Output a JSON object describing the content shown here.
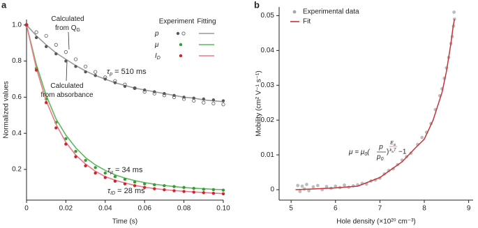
{
  "chart_data": [
    {
      "type": "decay",
      "panel_label": "a",
      "x_label": "Time (s)",
      "y_label": "Normalized values",
      "xlim": [
        0,
        0.1
      ],
      "ylim": [
        0.03,
        1.03
      ],
      "xticks": [
        0,
        0.02,
        0.04,
        0.06,
        0.08,
        {
          "value": 0.1,
          "label": "0.10"
        }
      ],
      "yticks": [
        0.2,
        0.4,
        0.6,
        0.8,
        {
          "value": 1,
          "label": "1.0"
        }
      ],
      "legend_headers": [
        "Experiment",
        "Fitting"
      ],
      "x": [
        0,
        0.005,
        0.01,
        0.015,
        0.02,
        0.025,
        0.03,
        0.035,
        0.04,
        0.045,
        0.05,
        0.055,
        0.06,
        0.065,
        0.07,
        0.075,
        0.08,
        0.085,
        0.09,
        0.095,
        0.1
      ],
      "series": [
        {
          "name": "p",
          "color": "#58595b",
          "fit_color": "#9a9a9a",
          "values": [
            1.0,
            0.93,
            0.88,
            0.84,
            0.8,
            0.77,
            0.74,
            0.72,
            0.7,
            0.68,
            0.66,
            0.65,
            0.64,
            0.63,
            0.62,
            0.61,
            0.6,
            0.595,
            0.59,
            0.585,
            0.58
          ],
          "values_open": [
            1.0,
            0.96,
            0.94,
            0.89,
            0.85,
            0.81,
            0.77,
            0.74,
            0.71,
            0.69,
            0.67,
            0.65,
            0.63,
            0.62,
            0.61,
            0.6,
            0.59,
            0.58,
            0.57,
            0.565,
            0.56
          ],
          "fit_values": [
            1.0,
            0.94,
            0.89,
            0.845,
            0.81,
            0.775,
            0.745,
            0.72,
            0.7,
            0.68,
            0.665,
            0.65,
            0.64,
            0.63,
            0.62,
            0.61,
            0.6,
            0.595,
            0.585,
            0.58,
            0.575
          ]
        },
        {
          "name": "μ",
          "color": "#3a9a3a",
          "fit_color": "#5cb85c",
          "values": [
            1.0,
            0.76,
            0.59,
            0.46,
            0.37,
            0.3,
            0.25,
            0.21,
            0.18,
            0.16,
            0.145,
            0.13,
            0.12,
            0.115,
            0.11,
            0.105,
            0.1,
            0.095,
            0.09,
            0.088,
            0.085
          ],
          "fit_values": [
            1.0,
            0.78,
            0.61,
            0.48,
            0.39,
            0.32,
            0.265,
            0.225,
            0.195,
            0.17,
            0.152,
            0.138,
            0.127,
            0.118,
            0.111,
            0.105,
            0.1,
            0.096,
            0.093,
            0.09,
            0.088
          ]
        },
        {
          "name": "I",
          "name_sub": "D",
          "color": "#d0232b",
          "fit_color": "#ec7a86",
          "values": [
            1.0,
            0.75,
            0.57,
            0.43,
            0.34,
            0.27,
            0.22,
            0.18,
            0.155,
            0.135,
            0.12,
            0.11,
            0.1,
            0.093,
            0.087,
            0.082,
            0.078,
            0.074,
            0.071,
            0.068,
            0.065
          ],
          "fit_values": [
            1.0,
            0.76,
            0.58,
            0.45,
            0.35,
            0.28,
            0.23,
            0.19,
            0.16,
            0.14,
            0.125,
            0.112,
            0.102,
            0.094,
            0.088,
            0.083,
            0.079,
            0.075,
            0.072,
            0.069,
            0.066
          ]
        }
      ],
      "annotations": [
        {
          "lines": [
            {
              "text": "Calculated"
            },
            {
              "text": "from Q",
              "sub": "G"
            }
          ],
          "color": "#333333"
        },
        {
          "lines": [
            {
              "text": "Calculated"
            },
            {
              "text": "from absorbance"
            }
          ],
          "color": "#333333"
        },
        {
          "text": "τ",
          "sub": "p",
          "rest": " = 510 ms",
          "color": "#8a8a8a"
        },
        {
          "text": "τ",
          "sub": "μ",
          "rest": " = 34 ms",
          "color": "#3a9a3a"
        },
        {
          "text": "τ",
          "sub": "ID",
          "rest": " = 28 ms",
          "color": "#d0232b"
        }
      ]
    },
    {
      "type": "scatter",
      "panel_label": "b",
      "x_label": "Hole density (×10²⁰ cm⁻³)",
      "y_label": "Mobility (cm² V⁻¹ s⁻¹)",
      "xlim": [
        4.73,
        9.1
      ],
      "ylim": [
        -0.003,
        0.0525
      ],
      "xticks": [
        5,
        6,
        7,
        8,
        9
      ],
      "yticks": [
        0,
        0.01,
        0.02,
        0.03,
        0.04,
        0.05
      ],
      "series": [
        {
          "name": "Experimental data",
          "color": "#a6a6a6",
          "kind": "scatter",
          "x": [
            5.15,
            5.2,
            5.25,
            5.3,
            5.35,
            5.4,
            5.5,
            5.6,
            5.7,
            5.8,
            5.9,
            6.0,
            6.1,
            6.2,
            6.3,
            6.4,
            6.5,
            6.6,
            6.7,
            6.8,
            6.9,
            7.0,
            7.1,
            7.2,
            7.3,
            7.4,
            7.5,
            7.6,
            7.7,
            7.85,
            7.95,
            8.05,
            8.15,
            8.25,
            8.35,
            8.4,
            8.45,
            8.5,
            8.55,
            8.6,
            8.63,
            8.66,
            8.68,
            8.67
          ],
          "values": [
            0.0012,
            -0.0005,
            0.001,
            0.0002,
            0.0015,
            -0.0003,
            0.0008,
            0.0012,
            0.0,
            0.0009,
            0.0004,
            0.001,
            0.0006,
            0.0013,
            0.0007,
            0.0011,
            0.0014,
            0.0018,
            0.0016,
            0.0025,
            0.0028,
            0.0033,
            0.0045,
            0.0055,
            0.006,
            0.0072,
            0.0085,
            0.0095,
            0.0105,
            0.013,
            0.015,
            0.0165,
            0.019,
            0.023,
            0.027,
            0.029,
            0.032,
            0.035,
            0.038,
            0.042,
            0.044,
            0.047,
            0.049,
            0.051
          ]
        },
        {
          "name": "Fit",
          "color": "#c8323a",
          "kind": "line",
          "x": [
            5.1,
            5.5,
            6.0,
            6.5,
            7.0,
            7.5,
            7.8,
            8.0,
            8.2,
            8.4,
            8.5,
            8.6,
            8.65,
            8.68
          ],
          "values": [
            0.0,
            0.0002,
            0.0005,
            0.001,
            0.0035,
            0.008,
            0.012,
            0.0145,
            0.02,
            0.028,
            0.034,
            0.042,
            0.047,
            0.049
          ]
        }
      ],
      "equation": {
        "lhs": "μ = μ",
        "lhs_sub": "0",
        "open": "(",
        "num": "p",
        "den": "p",
        "den_sub": "0",
        "close": ")",
        "exp_num": "E",
        "exp_num_sub": "a",
        "exp_den": "k",
        "exp_den_sub": "B",
        "exp_den_rest": "T",
        "tail": "−1",
        "exp_color": "#c8323a"
      }
    }
  ]
}
